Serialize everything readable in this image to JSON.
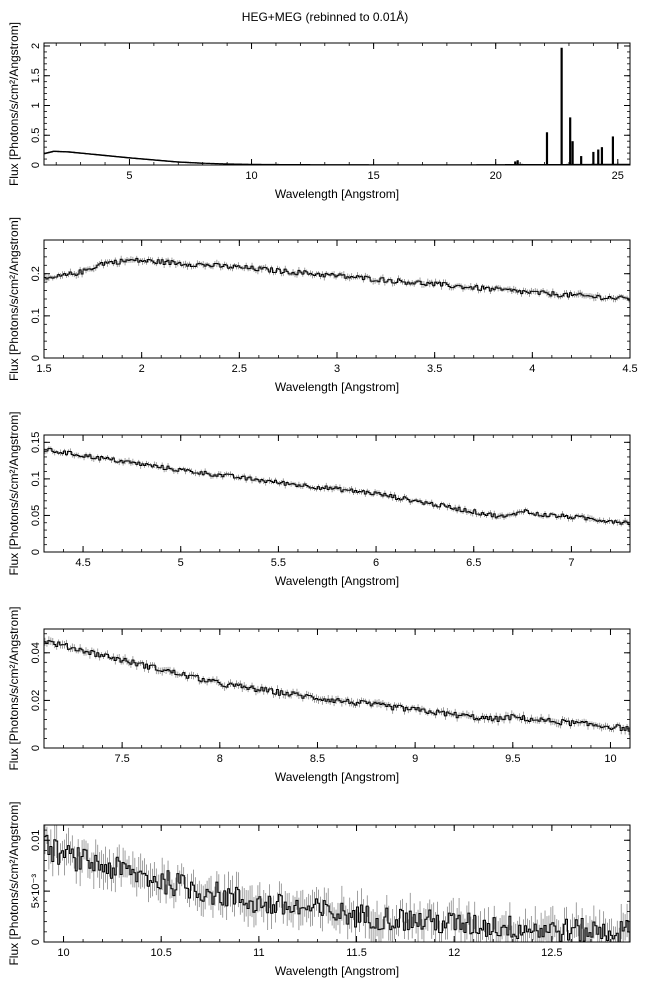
{
  "figure_title": "HEG+MEG (rebinned to 0.01Å)",
  "chart_data": [
    {
      "type": "line",
      "title": "HEG+MEG (rebinned to 0.01Å)",
      "xlabel": "Wavelength [Angstrom]",
      "ylabel": "Flux [Photons/s/cm²/Angstrom]",
      "xlim": [
        1.5,
        25.5
      ],
      "ylim": [
        0,
        2.05
      ],
      "xticks": [
        {
          "v": 5,
          "label": "5"
        },
        {
          "v": 10,
          "label": "10"
        },
        {
          "v": 15,
          "label": "15"
        },
        {
          "v": 20,
          "label": "20"
        },
        {
          "v": 25,
          "label": "25"
        }
      ],
      "yticks": [
        {
          "v": 0,
          "label": "0"
        },
        {
          "v": 0.5,
          "label": "0.5"
        },
        {
          "v": 1,
          "label": "1"
        },
        {
          "v": 1.5,
          "label": "1.5"
        },
        {
          "v": 2,
          "label": "2"
        }
      ],
      "series": [
        {
          "x": [
            1.5,
            1.9,
            2.5,
            3,
            3.5,
            4,
            5,
            6,
            7,
            8,
            9,
            10,
            11,
            12,
            14,
            16,
            18,
            20,
            20.5,
            21,
            22,
            24,
            25.5
          ],
          "y": [
            0.19,
            0.23,
            0.22,
            0.2,
            0.18,
            0.16,
            0.12,
            0.085,
            0.05,
            0.03,
            0.018,
            0.011,
            0.008,
            0.006,
            0.004,
            0.003,
            0.003,
            0.004,
            0.006,
            0.008,
            0.006,
            0.01,
            0.01
          ]
        }
      ],
      "spikes": [
        {
          "x": 20.8,
          "y": 0.06
        },
        {
          "x": 20.9,
          "y": 0.08
        },
        {
          "x": 22.1,
          "y": 0.55
        },
        {
          "x": 22.7,
          "y": 1.97
        },
        {
          "x": 23.05,
          "y": 0.8
        },
        {
          "x": 23.15,
          "y": 0.4
        },
        {
          "x": 23.5,
          "y": 0.15
        },
        {
          "x": 24.0,
          "y": 0.22
        },
        {
          "x": 24.2,
          "y": 0.26
        },
        {
          "x": 24.35,
          "y": 0.3
        },
        {
          "x": 24.8,
          "y": 0.48
        }
      ],
      "noise": 0
    },
    {
      "type": "line",
      "xlabel": "Wavelength [Angstrom]",
      "ylabel": "Flux [Photons/s/cm²/Angstrom]",
      "xlim": [
        1.5,
        4.5
      ],
      "ylim": [
        0,
        0.28
      ],
      "xticks": [
        {
          "v": 1.5,
          "label": "1.5"
        },
        {
          "v": 2,
          "label": "2"
        },
        {
          "v": 2.5,
          "label": "2.5"
        },
        {
          "v": 3,
          "label": "3"
        },
        {
          "v": 3.5,
          "label": "3.5"
        },
        {
          "v": 4,
          "label": "4"
        },
        {
          "v": 4.5,
          "label": "4.5"
        }
      ],
      "yticks": [
        {
          "v": 0,
          "label": "0"
        },
        {
          "v": 0.1,
          "label": "0.1"
        },
        {
          "v": 0.2,
          "label": "0.2"
        }
      ],
      "series": [
        {
          "x": [
            1.5,
            1.6,
            1.7,
            1.8,
            1.95,
            2.1,
            2.5,
            3,
            3.5,
            4,
            4.5
          ],
          "y": [
            0.185,
            0.195,
            0.205,
            0.225,
            0.232,
            0.228,
            0.215,
            0.195,
            0.175,
            0.155,
            0.14
          ]
        }
      ],
      "noise": 0.006
    },
    {
      "type": "line",
      "xlabel": "Wavelength [Angstrom]",
      "ylabel": "Flux [Photons/s/cm²/Angstrom]",
      "xlim": [
        4.3,
        7.3
      ],
      "ylim": [
        0,
        0.16
      ],
      "xticks": [
        {
          "v": 4.5,
          "label": "4.5"
        },
        {
          "v": 5,
          "label": "5"
        },
        {
          "v": 5.5,
          "label": "5.5"
        },
        {
          "v": 6,
          "label": "6"
        },
        {
          "v": 6.5,
          "label": "6.5"
        },
        {
          "v": 7,
          "label": "7"
        }
      ],
      "yticks": [
        {
          "v": 0,
          "label": "0"
        },
        {
          "v": 0.05,
          "label": "0.05"
        },
        {
          "v": 0.1,
          "label": "0.1"
        },
        {
          "v": 0.15,
          "label": "0.15"
        }
      ],
      "series": [
        {
          "x": [
            4.3,
            4.5,
            5,
            5.5,
            6,
            6.5,
            6.65,
            6.7,
            6.75,
            6.8,
            7,
            7.3
          ],
          "y": [
            0.14,
            0.132,
            0.112,
            0.095,
            0.08,
            0.055,
            0.048,
            0.05,
            0.058,
            0.052,
            0.048,
            0.04
          ]
        }
      ],
      "noise": 0.003
    },
    {
      "type": "line",
      "xlabel": "Wavelength [Angstrom]",
      "ylabel": "Flux [Photons/s/cm²/Angstrom]",
      "xlim": [
        7.1,
        10.1
      ],
      "ylim": [
        0,
        0.05
      ],
      "xticks": [
        {
          "v": 7.5,
          "label": "7.5"
        },
        {
          "v": 8,
          "label": "8"
        },
        {
          "v": 8.5,
          "label": "8.5"
        },
        {
          "v": 9,
          "label": "9"
        },
        {
          "v": 9.5,
          "label": "9.5"
        },
        {
          "v": 10,
          "label": "10"
        }
      ],
      "yticks": [
        {
          "v": 0,
          "label": "0"
        },
        {
          "v": 0.02,
          "label": "0.02"
        },
        {
          "v": 0.04,
          "label": "0.04"
        }
      ],
      "series": [
        {
          "x": [
            7.1,
            7.5,
            8,
            8.5,
            9,
            9.4,
            9.5,
            9.6,
            10,
            10.1
          ],
          "y": [
            0.045,
            0.037,
            0.027,
            0.021,
            0.016,
            0.012,
            0.013,
            0.012,
            0.009,
            0.008
          ]
        }
      ],
      "noise": 0.0012
    },
    {
      "type": "line",
      "xlabel": "Wavelength [Angstrom]",
      "ylabel": "Flux [Photons/s/cm²/Angstrom]",
      "xlim": [
        9.9,
        12.9
      ],
      "ylim": [
        0,
        0.0115
      ],
      "xticks": [
        {
          "v": 10,
          "label": "10"
        },
        {
          "v": 10.5,
          "label": "10.5"
        },
        {
          "v": 11,
          "label": "11"
        },
        {
          "v": 11.5,
          "label": "11.5"
        },
        {
          "v": 12,
          "label": "12"
        },
        {
          "v": 12.5,
          "label": "12.5"
        }
      ],
      "yticks": [
        {
          "v": 0,
          "label": "0"
        },
        {
          "v": 0.005,
          "label": "5×10⁻³"
        },
        {
          "v": 0.01,
          "label": "0.01"
        }
      ],
      "series": [
        {
          "x": [
            9.9,
            10,
            10.5,
            11,
            11.5,
            12,
            12.5,
            12.9
          ],
          "y": [
            0.0095,
            0.0085,
            0.006,
            0.0038,
            0.0026,
            0.0018,
            0.0012,
            0.001
          ]
        }
      ],
      "noise": 0.0012
    }
  ]
}
